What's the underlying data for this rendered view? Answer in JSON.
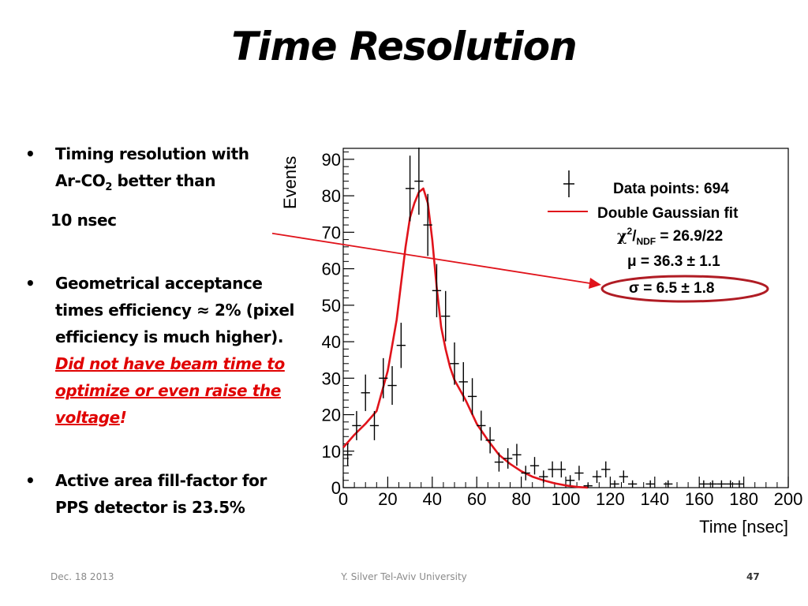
{
  "slide": {
    "title": "Time Resolution",
    "bullets": {
      "b1_line1": "Timing resolution with",
      "b1_line2_pre": "Ar-CO",
      "b1_line2_sub": "2",
      "b1_line2_post": " better than",
      "b1_line3": "10 nsec",
      "b2_text": "Geometrical acceptance times efficiency ≈ 2% (pixel efficiency is much higher).",
      "b2_red": "Did not have beam time to optimize or even raise the voltage",
      "b2_red_end": "!",
      "b3_text": "Active area fill-factor for PPS detector is 23.5%",
      "bullet_char": "•"
    },
    "footer": {
      "date": "Dec. 18 2013",
      "author": "Y. Silver Tel-Aviv University",
      "page": "47"
    }
  },
  "chart_data": {
    "type": "scatter",
    "xlabel": "Time [nsec]",
    "ylabel": "Events",
    "xlim": [
      0,
      200
    ],
    "ylim": [
      0,
      93
    ],
    "xticks": [
      0,
      20,
      40,
      60,
      80,
      100,
      120,
      140,
      160,
      180,
      200
    ],
    "yticks": [
      0,
      10,
      20,
      30,
      40,
      50,
      60,
      70,
      80,
      90
    ],
    "grid": false,
    "legend_position": "top-right",
    "colors": {
      "fit": "#e0131b",
      "points": "#000000",
      "highlight": "#b01c24"
    },
    "legend": {
      "points_label": "Data points: 694",
      "fit_label": "Double Gaussian fit",
      "chi2_label": "χ",
      "chi2_sup": "2",
      "chi2_slash": "/",
      "chi2_sub": "NDF",
      "chi2_value": " = 26.9/22",
      "mu_label": "μ = 36.3 ± 1.1",
      "sigma_label": "σ = 6.5 ± 1.8"
    },
    "series": [
      {
        "name": "Data points: 694",
        "type": "errorbar",
        "x": [
          2,
          6,
          10,
          14,
          18,
          22,
          26,
          30,
          34,
          38,
          42,
          46,
          50,
          54,
          58,
          62,
          66,
          70,
          74,
          78,
          82,
          86,
          90,
          94,
          98,
          102,
          106,
          110,
          114,
          118,
          122,
          126,
          130,
          138,
          146,
          162,
          166,
          170,
          174,
          178
        ],
        "y": [
          9,
          17,
          26,
          17,
          30,
          28,
          39,
          82,
          84,
          72,
          54,
          47,
          34,
          29,
          25,
          17,
          13,
          7,
          8,
          9,
          4,
          6,
          3,
          5,
          5,
          2,
          4,
          0.5,
          3,
          5,
          1,
          3,
          1,
          1,
          1,
          1,
          1,
          1,
          1,
          1
        ],
        "yerr": [
          3,
          4,
          5,
          4,
          5.5,
          5.3,
          6.2,
          9,
          9.2,
          8.5,
          7.3,
          6.9,
          5.8,
          5.4,
          5,
          4.1,
          3.6,
          2.6,
          2.8,
          3,
          2,
          2.4,
          1.7,
          2.2,
          2.2,
          1.4,
          2,
          0.7,
          1.7,
          2.2,
          1,
          1.7,
          1,
          1,
          1,
          1,
          1,
          1,
          1,
          1
        ]
      },
      {
        "name": "Double Gaussian fit",
        "type": "line",
        "x": [
          0,
          5,
          10,
          15,
          20,
          24,
          26,
          28,
          30,
          32,
          34,
          36,
          38,
          40,
          42,
          44,
          46,
          48,
          50,
          55,
          60,
          65,
          70,
          75,
          80,
          85,
          90,
          95,
          100,
          105,
          110
        ],
        "y": [
          11,
          14.5,
          17.5,
          21,
          32,
          46,
          56,
          66,
          74,
          78,
          81,
          82,
          78,
          68,
          55,
          44,
          38,
          33,
          29.5,
          24,
          17.5,
          13,
          9,
          6.5,
          4.5,
          3,
          2,
          1.2,
          0.6,
          0.2,
          0
        ]
      }
    ]
  }
}
